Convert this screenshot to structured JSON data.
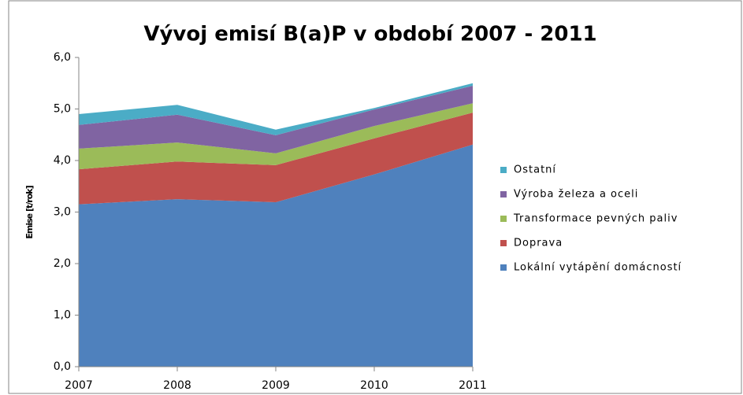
{
  "chart_data": {
    "type": "stacked_area",
    "title": "Vývoj emisí B(a)P v období 2007 - 2011",
    "y_label": "Emise [t/rok]",
    "categories": [
      "2007",
      "2008",
      "2009",
      "2010",
      "2011"
    ],
    "series": [
      {
        "name": "Lokální vytápění domácností",
        "color": "#4f81bd",
        "values": [
          3.15,
          3.25,
          3.19,
          3.73,
          4.31
        ]
      },
      {
        "name": "Doprava",
        "color": "#c0504d",
        "values": [
          0.68,
          0.73,
          0.72,
          0.7,
          0.62
        ]
      },
      {
        "name": "Transformace pevných paliv",
        "color": "#9bbb59",
        "values": [
          0.4,
          0.37,
          0.23,
          0.24,
          0.18
        ]
      },
      {
        "name": "Výroba železa a oceli",
        "color": "#8064a2",
        "values": [
          0.46,
          0.54,
          0.35,
          0.32,
          0.34
        ]
      },
      {
        "name": "Ostatní",
        "color": "#4bacc6",
        "values": [
          0.21,
          0.19,
          0.11,
          0.03,
          0.05
        ]
      }
    ],
    "ylim": [
      0,
      6
    ],
    "yticks": [
      {
        "value": 0,
        "label": "0,0"
      },
      {
        "value": 1,
        "label": "1,0"
      },
      {
        "value": 2,
        "label": "2,0"
      },
      {
        "value": 3,
        "label": "3,0"
      },
      {
        "value": 4,
        "label": "4,0"
      },
      {
        "value": 5,
        "label": "5,0"
      },
      {
        "value": 6,
        "label": "6,0"
      }
    ],
    "grid": false,
    "legend": "right"
  }
}
